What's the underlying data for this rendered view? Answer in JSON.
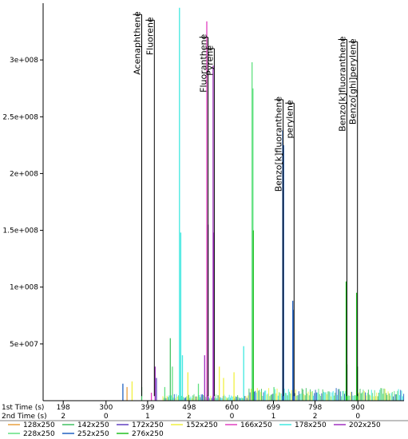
{
  "chart_data": {
    "type": "line",
    "title": "",
    "xlabel_primary": "1st Time (s)",
    "xlabel_secondary": "2nd Time (s)",
    "ylabel": "",
    "ylim": [
      0,
      350000000
    ],
    "xlim": [
      150,
      1010
    ],
    "y_ticks": [
      {
        "value": 50000000,
        "label": "5e+007"
      },
      {
        "value": 100000000,
        "label": "1e+008"
      },
      {
        "value": 150000000,
        "label": "1.5e+008"
      },
      {
        "value": 200000000,
        "label": "2e+008"
      },
      {
        "value": 250000000,
        "label": "2.5e+008"
      },
      {
        "value": 300000000,
        "label": "3e+008"
      }
    ],
    "x_ticks": [
      {
        "value": 198,
        "label": "198",
        "second": "2"
      },
      {
        "value": 300,
        "label": "300",
        "second": "0"
      },
      {
        "value": 399,
        "label": "399",
        "second": "1"
      },
      {
        "value": 498,
        "label": "498",
        "second": "2"
      },
      {
        "value": 600,
        "label": "600",
        "second": "0"
      },
      {
        "value": 699,
        "label": "699",
        "second": "1"
      },
      {
        "value": 798,
        "label": "798",
        "second": "2"
      },
      {
        "value": 900,
        "label": "900",
        "second": "0"
      }
    ],
    "grid": false,
    "legend_position": "bottom",
    "series": [
      {
        "name": "128x250",
        "color": "#e8a040"
      },
      {
        "name": "142x250",
        "color": "#40c060"
      },
      {
        "name": "172x250",
        "color": "#6040c0"
      },
      {
        "name": "152x250",
        "color": "#f0f040"
      },
      {
        "name": "166x250",
        "color": "#e040c0"
      },
      {
        "name": "178x250",
        "color": "#40e8e0"
      },
      {
        "name": "202x250",
        "color": "#a030c0"
      },
      {
        "name": "228x250",
        "color": "#60e080"
      },
      {
        "name": "252x250",
        "color": "#2060c0"
      },
      {
        "name": "276x250",
        "color": "#20c020"
      }
    ],
    "peaks": [
      {
        "x": 340,
        "y": 15000000,
        "color": "#2060c0"
      },
      {
        "x": 350,
        "y": 12000000,
        "color": "#e8a040"
      },
      {
        "x": 362,
        "y": 17000000,
        "color": "#f0f040"
      },
      {
        "x": 385,
        "y": 12000000,
        "color": "#40c060"
      },
      {
        "x": 408,
        "y": 7000000,
        "color": "#e040c0"
      },
      {
        "x": 417,
        "y": 30000000,
        "color": "#a030c0"
      },
      {
        "x": 420,
        "y": 20000000,
        "color": "#6040c0"
      },
      {
        "x": 440,
        "y": 12000000,
        "color": "#60e080"
      },
      {
        "x": 453,
        "y": 55000000,
        "color": "#40c060"
      },
      {
        "x": 458,
        "y": 30000000,
        "color": "#60e080"
      },
      {
        "x": 475,
        "y": 346000000,
        "color": "#40e8e0"
      },
      {
        "x": 478,
        "y": 148000000,
        "color": "#40e8e0"
      },
      {
        "x": 482,
        "y": 40000000,
        "color": "#40e8e0"
      },
      {
        "x": 495,
        "y": 25000000,
        "color": "#f0f040"
      },
      {
        "x": 520,
        "y": 15000000,
        "color": "#60e080"
      },
      {
        "x": 535,
        "y": 40000000,
        "color": "#a030c0"
      },
      {
        "x": 540,
        "y": 334000000,
        "color": "#e040c0"
      },
      {
        "x": 543,
        "y": 155000000,
        "color": "#a030c0"
      },
      {
        "x": 555,
        "y": 295000000,
        "color": "#a030c0"
      },
      {
        "x": 557,
        "y": 148000000,
        "color": "#a030c0"
      },
      {
        "x": 570,
        "y": 30000000,
        "color": "#f0f040"
      },
      {
        "x": 580,
        "y": 20000000,
        "color": "#f0f040"
      },
      {
        "x": 605,
        "y": 25000000,
        "color": "#f0f040"
      },
      {
        "x": 628,
        "y": 48000000,
        "color": "#40e8e0"
      },
      {
        "x": 648,
        "y": 298000000,
        "color": "#60e080"
      },
      {
        "x": 650,
        "y": 275000000,
        "color": "#60e080"
      },
      {
        "x": 651,
        "y": 150000000,
        "color": "#20c020"
      },
      {
        "x": 700,
        "y": 12000000,
        "color": "#60e080"
      },
      {
        "x": 721,
        "y": 238000000,
        "color": "#2060c0"
      },
      {
        "x": 723,
        "y": 225000000,
        "color": "#2060c0"
      },
      {
        "x": 745,
        "y": 88000000,
        "color": "#2060c0"
      },
      {
        "x": 747,
        "y": 80000000,
        "color": "#2060c0"
      },
      {
        "x": 872,
        "y": 105000000,
        "color": "#20c020"
      },
      {
        "x": 874,
        "y": 32000000,
        "color": "#20c020"
      },
      {
        "x": 897,
        "y": 95000000,
        "color": "#20c020"
      },
      {
        "x": 899,
        "y": 30000000,
        "color": "#20c020"
      }
    ],
    "annotations": [
      {
        "label": "Acenaphthene",
        "x": 385,
        "y": 340000000,
        "line_bottom": 4000000
      },
      {
        "label": "Fluorene",
        "x": 415,
        "y": 335000000,
        "line_bottom": 4000000
      },
      {
        "label": "Fluoranthene",
        "x": 543,
        "y": 320000000,
        "line_bottom": 4000000
      },
      {
        "label": "Pyrene",
        "x": 558,
        "y": 310000000,
        "line_bottom": 4000000
      },
      {
        "label": "Benzo[k]fluoranthene",
        "x": 722,
        "y": 265000000,
        "line_bottom": 4000000
      },
      {
        "label": "perylene",
        "x": 748,
        "y": 262000000,
        "line_bottom": 4000000
      },
      {
        "label": "Benzo[k]fluoranthene",
        "x": 874,
        "y": 318000000,
        "line_bottom": 4000000
      },
      {
        "label": "Benzo[ghi]perylene",
        "x": 899,
        "y": 316000000,
        "line_bottom": 4000000
      }
    ]
  }
}
